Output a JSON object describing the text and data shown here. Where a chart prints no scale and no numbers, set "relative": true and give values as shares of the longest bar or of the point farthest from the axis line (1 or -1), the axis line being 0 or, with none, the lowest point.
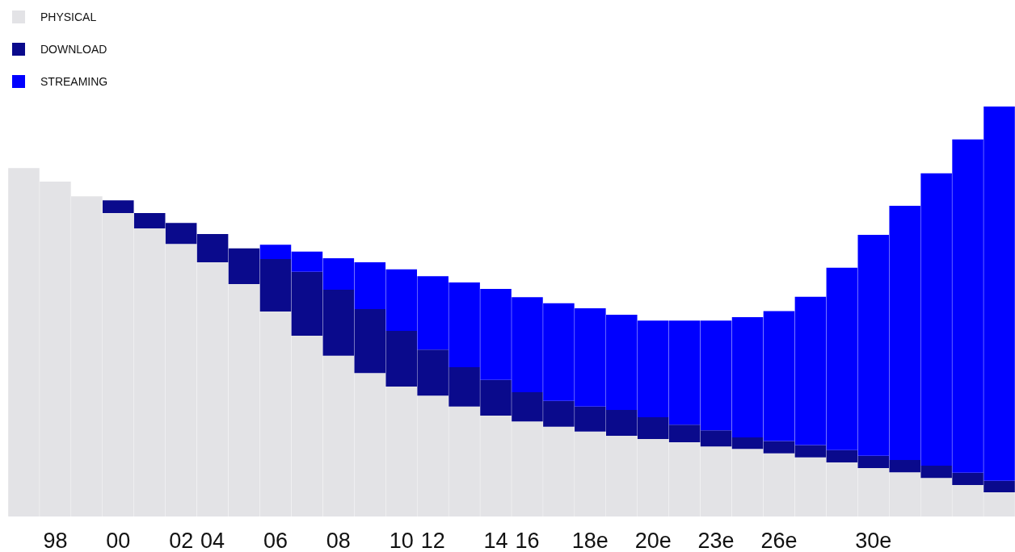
{
  "chart_data": {
    "type": "bar",
    "stacked": true,
    "relative": true,
    "legend": "top left",
    "categories": [
      null,
      "98",
      null,
      "00",
      null,
      "02",
      "04",
      null,
      "06",
      null,
      "08",
      null,
      "10",
      "12",
      null,
      "14",
      "16",
      null,
      "18e",
      null,
      "20e",
      null,
      "23e",
      null,
      "26e",
      null,
      null,
      "30e",
      null,
      null,
      null,
      null
    ],
    "series": [
      {
        "name": "PHYSICAL",
        "color": "#e3e3e6",
        "values": [
          0.85,
          0.817,
          0.781,
          0.74,
          0.703,
          0.665,
          0.62,
          0.567,
          0.5,
          0.441,
          0.392,
          0.35,
          0.317,
          0.295,
          0.268,
          0.246,
          0.232,
          0.219,
          0.207,
          0.197,
          0.189,
          0.181,
          0.171,
          0.165,
          0.154,
          0.144,
          0.132,
          0.118,
          0.108,
          0.094,
          0.077,
          0.059
        ]
      },
      {
        "name": "DOWNLOAD",
        "color": "#0a0a8c",
        "values": [
          null,
          null,
          null,
          0.031,
          0.037,
          0.051,
          0.069,
          0.087,
          0.128,
          0.156,
          0.161,
          0.156,
          0.136,
          0.112,
          0.096,
          0.087,
          0.071,
          0.063,
          0.061,
          0.063,
          0.053,
          0.043,
          0.039,
          0.028,
          0.03,
          0.03,
          0.03,
          0.03,
          0.03,
          0.03,
          0.03,
          0.028
        ]
      },
      {
        "name": "STREAMING",
        "color": "#0000ff",
        "values": [
          null,
          null,
          null,
          null,
          null,
          null,
          null,
          null,
          0.035,
          0.049,
          0.077,
          0.114,
          0.15,
          0.179,
          0.207,
          0.222,
          0.232,
          0.238,
          0.24,
          0.232,
          0.236,
          0.254,
          0.268,
          0.293,
          0.317,
          0.362,
          0.445,
          0.539,
          0.62,
          0.713,
          0.813,
          0.913
        ]
      }
    ]
  }
}
